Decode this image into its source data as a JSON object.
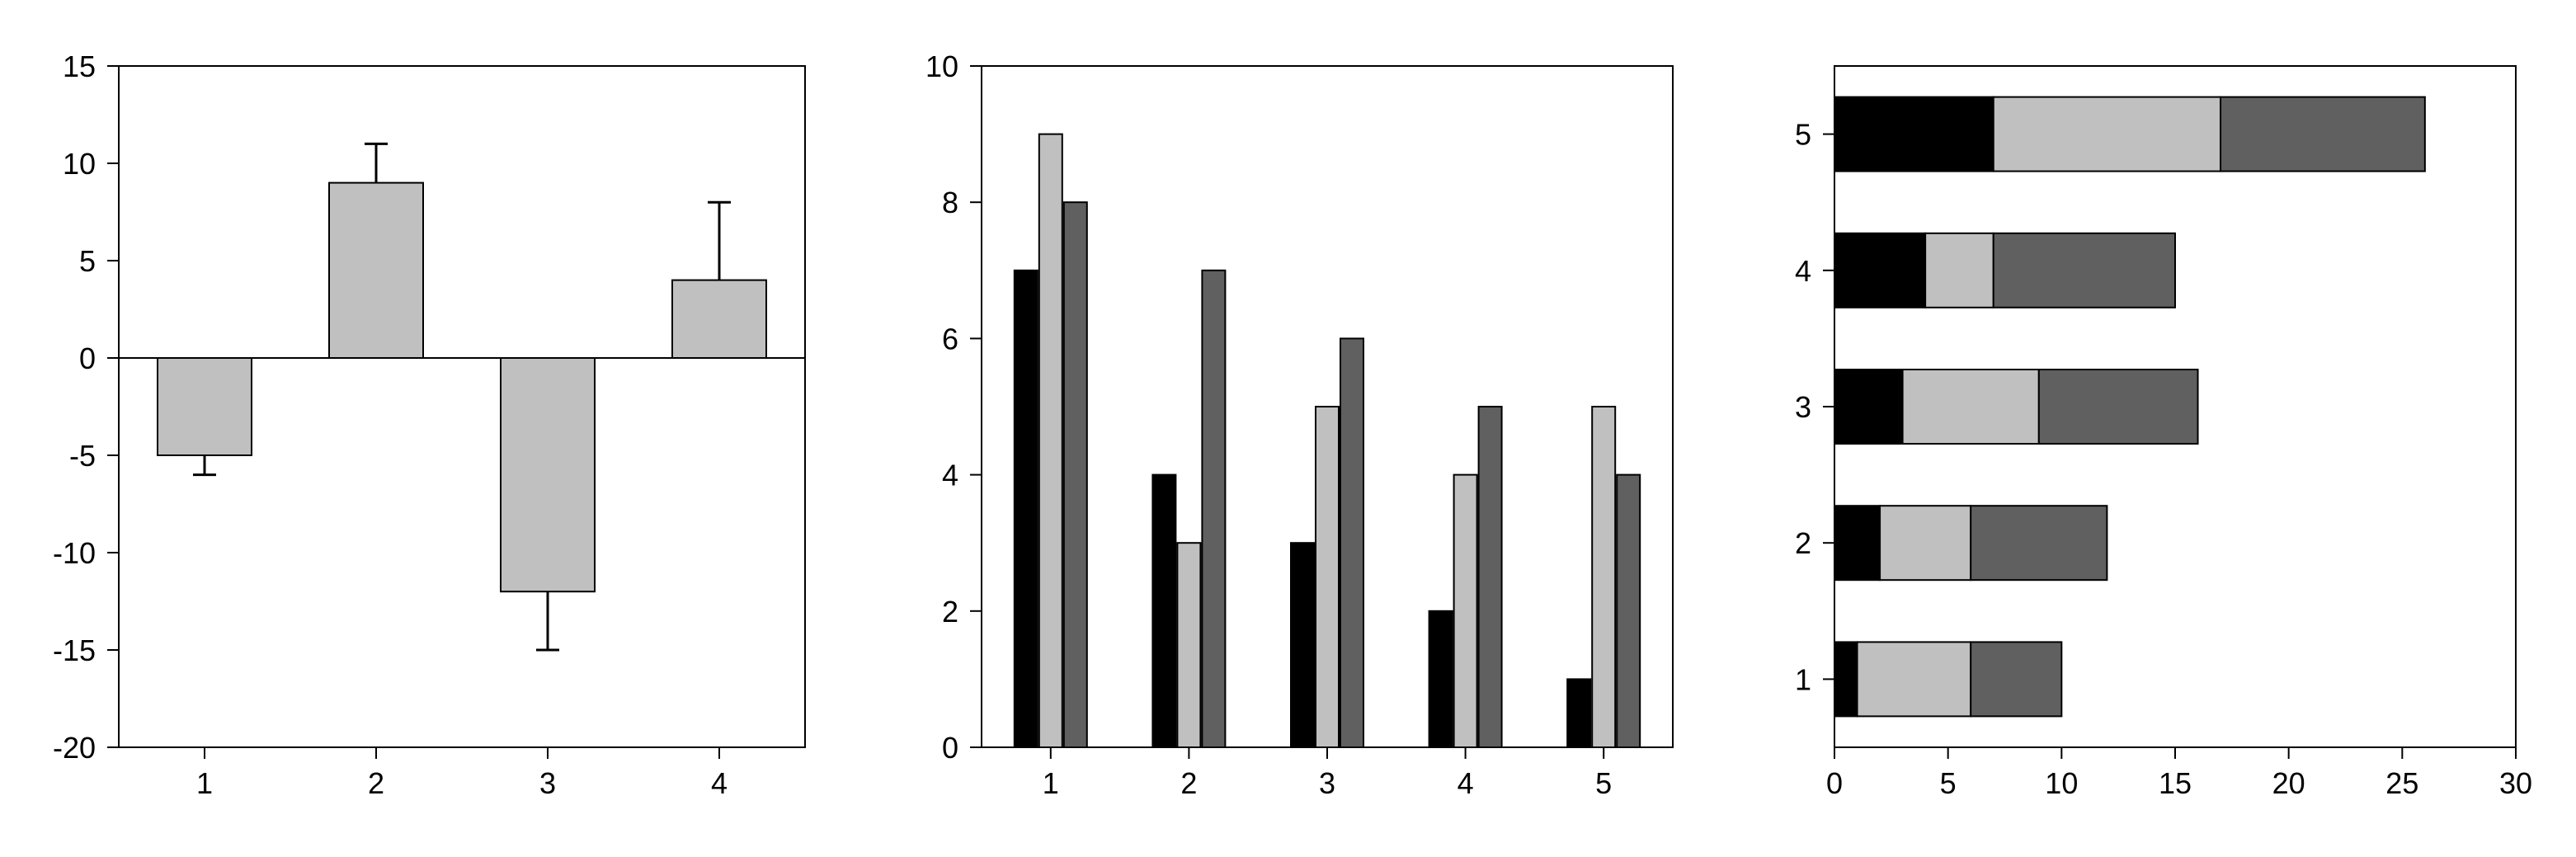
{
  "chart_data": [
    {
      "type": "bar",
      "categories": [
        "1",
        "2",
        "3",
        "4"
      ],
      "series": [
        {
          "values": [
            -5,
            9,
            -12,
            4
          ],
          "error_plus": [
            1,
            2,
            3,
            4
          ]
        }
      ],
      "ylim": [
        -20,
        15
      ],
      "yticks": [
        "-20",
        "-15",
        "-10",
        "-5",
        "0",
        "5",
        "10",
        "15"
      ],
      "zero_line": true,
      "grid": false,
      "colors": [
        "#c0c0c0"
      ]
    },
    {
      "type": "bar",
      "orientation": "vertical",
      "grouping": "grouped",
      "categories": [
        "1",
        "2",
        "3",
        "4",
        "5"
      ],
      "series": [
        {
          "values": [
            7,
            4,
            3,
            2,
            1
          ]
        },
        {
          "values": [
            9,
            3,
            5,
            4,
            5
          ]
        },
        {
          "values": [
            8,
            7,
            6,
            5,
            4
          ]
        }
      ],
      "ylim": [
        0,
        10
      ],
      "yticks": [
        "0",
        "2",
        "4",
        "6",
        "8",
        "10"
      ],
      "grid": false,
      "colors": [
        "#000000",
        "#c0c0c0",
        "#606060"
      ]
    },
    {
      "type": "bar",
      "orientation": "horizontal",
      "grouping": "stacked",
      "categories": [
        "1",
        "2",
        "3",
        "4",
        "5"
      ],
      "series": [
        {
          "values": [
            1,
            2,
            3,
            4,
            7
          ]
        },
        {
          "values": [
            5,
            4,
            6,
            3,
            10
          ]
        },
        {
          "values": [
            4,
            6,
            7,
            8,
            9
          ]
        }
      ],
      "xlim": [
        0,
        30
      ],
      "xticks": [
        "0",
        "5",
        "10",
        "15",
        "20",
        "25",
        "30"
      ],
      "grid": false,
      "colors": [
        "#000000",
        "#c0c0c0",
        "#606060"
      ]
    }
  ]
}
